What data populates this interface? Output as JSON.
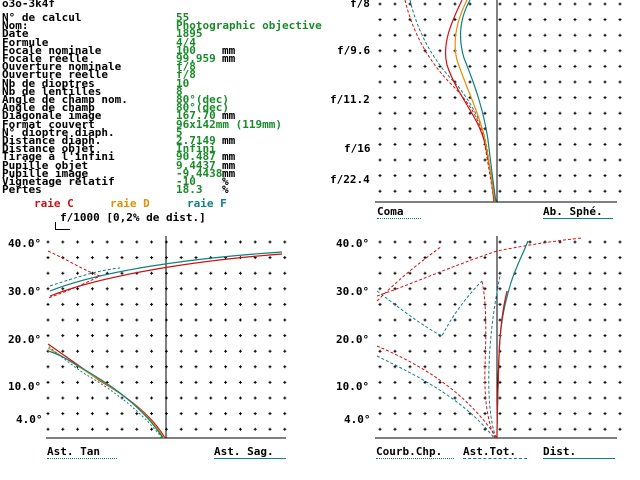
{
  "header": {
    "id": "o3o-3k4f"
  },
  "params": [
    {
      "label": "N° de calcul",
      "value": "55",
      "unit": ""
    },
    {
      "label": "Nom:",
      "value": "Photographic objective",
      "unit": ""
    },
    {
      "label": "Date",
      "value": "1895",
      "unit": ""
    },
    {
      "label": "Formule",
      "value": "4/4",
      "unit": ""
    },
    {
      "label": "Focale nominale",
      "value": "100",
      "unit": "mm"
    },
    {
      "label": "Focale réelle",
      "value": "99.959",
      "unit": "mm"
    },
    {
      "label": "Ouverture nominale",
      "value": "f/8",
      "unit": ""
    },
    {
      "label": "Ouverture réelle",
      "value": "f/8",
      "unit": ""
    },
    {
      "label": "Nb de dioptres",
      "value": "10",
      "unit": ""
    },
    {
      "label": "Nb de lentilles",
      "value": "8",
      "unit": ""
    },
    {
      "label": "Angle de champ nom.",
      "value": "80°(dec)",
      "unit": ""
    },
    {
      "label": "Angle de champ",
      "value": "80°(dec)",
      "unit": ""
    },
    {
      "label": "Diagonale image",
      "value": "167.70",
      "unit": "mm"
    },
    {
      "label": "Format couvert",
      "value": "96x142mm (119mm)",
      "unit": ""
    },
    {
      "label": "N° dioptre diaph.",
      "value": "5",
      "unit": ""
    },
    {
      "label": "Distance diaph.",
      "value": "2.7149",
      "unit": "mm"
    },
    {
      "label": "Distance objet",
      "value": "Infini",
      "unit": ""
    },
    {
      "label": "Tirage à l'infini",
      "value": "90.487",
      "unit": "mm"
    },
    {
      "label": "Pupille objet",
      "value": "9.4437",
      "unit": "mm"
    },
    {
      "label": "Pupille image",
      "value": "-9.4438",
      "unit": "mm"
    },
    {
      "label": "Vignetage relatif",
      "value": "-10",
      "unit": "%"
    },
    {
      "label": "Pertes",
      "value": "18.3",
      "unit": "%"
    }
  ],
  "legend": {
    "raie_c": "raie C",
    "raie_d": "raie D",
    "raie_f": "raie F",
    "color_c": "#d01010",
    "color_d": "#e09000",
    "color_f": "#108080",
    "scale_note": "f/1000 [0,2% de dist.]"
  },
  "top_right": {
    "apertures": [
      "f/8",
      "f/9.6",
      "f/11.2",
      "f/16",
      "f/22.4"
    ],
    "left_caption": "Coma",
    "right_caption": "Ab. Sphé."
  },
  "bottom_left": {
    "angles": [
      "40.0°",
      "30.0°",
      "20.0°",
      "10.0°",
      "4.0°"
    ],
    "left_caption": "Ast. Tan",
    "right_caption": "Ast. Sag."
  },
  "bottom_right": {
    "angles": [
      "40.0°",
      "30.0°",
      "20.0°",
      "10.0°",
      "4.0°"
    ],
    "caption_1": "Courb.Chp.",
    "caption_2": "Ast.Tot.",
    "caption_3": "Dist."
  }
}
